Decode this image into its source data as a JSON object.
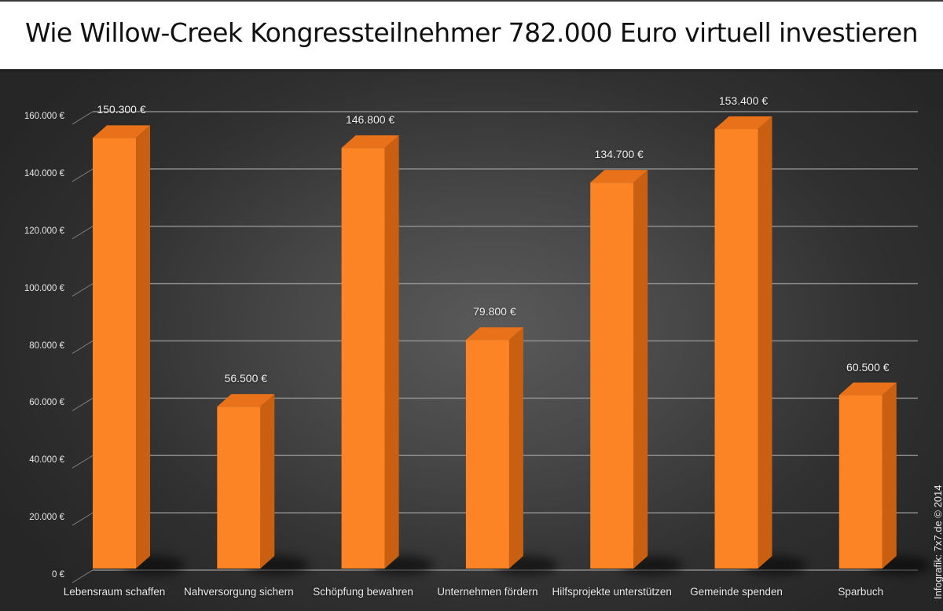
{
  "title": "Wie Willow-Creek Kongressteilnehmer 782.000 Euro virtuell investieren",
  "credit": "Infografik: 7x7.de © 2014",
  "colors": {
    "bar_front": "#fd8424",
    "bar_side": "#c95f10",
    "bar_top": "#e8711a",
    "grid": "#9a9a9a",
    "text": "#eaeaea"
  },
  "y_axis": {
    "ticks": [
      {
        "value": 0,
        "label": "0 €"
      },
      {
        "value": 20000,
        "label": "20.000 €"
      },
      {
        "value": 40000,
        "label": "40.000 €"
      },
      {
        "value": 60000,
        "label": "60.000 €"
      },
      {
        "value": 80000,
        "label": "80.000 €"
      },
      {
        "value": 100000,
        "label": "100.000 €"
      },
      {
        "value": 120000,
        "label": "120.000 €"
      },
      {
        "value": 140000,
        "label": "140.000 €"
      },
      {
        "value": 160000,
        "label": "160.000 €"
      }
    ]
  },
  "bars": [
    {
      "category": "Lebensraum schaffen",
      "value": 150300,
      "label": "150.300 €"
    },
    {
      "category": "Nahversorgung sichern",
      "value": 56500,
      "label": "56.500 €"
    },
    {
      "category": "Schöpfung bewahren",
      "value": 146800,
      "label": "146.800 €"
    },
    {
      "category": "Unternehmen fördern",
      "value": 79800,
      "label": "79.800 €"
    },
    {
      "category": "Hilfsprojekte unterstützen",
      "value": 134700,
      "label": "134.700 €"
    },
    {
      "category": "Gemeinde spenden",
      "value": 153400,
      "label": "153.400 €"
    },
    {
      "category": "Sparbuch",
      "value": 60500,
      "label": "60.500 €"
    }
  ],
  "chart_data": {
    "type": "bar",
    "title": "Wie Willow-Creek Kongressteilnehmer 782.000 Euro virtuell investieren",
    "categories": [
      "Lebensraum schaffen",
      "Nahversorgung sichern",
      "Schöpfung bewahren",
      "Unternehmen fördern",
      "Hilfsprojekte unterstützen",
      "Gemeinde spenden",
      "Sparbuch"
    ],
    "values": [
      150300,
      56500,
      146800,
      79800,
      134700,
      153400,
      60500
    ],
    "data_labels": [
      "150.300 €",
      "56.500 €",
      "146.800 €",
      "79.800 €",
      "134.700 €",
      "153.400 €",
      "60.500 €"
    ],
    "xlabel": "",
    "ylabel": "",
    "ylim": [
      0,
      160000
    ],
    "yticks": [
      0,
      20000,
      40000,
      60000,
      80000,
      100000,
      120000,
      140000,
      160000
    ],
    "ytick_labels": [
      "0 €",
      "20.000 €",
      "40.000 €",
      "60.000 €",
      "80.000 €",
      "100.000 €",
      "120.000 €",
      "140.000 €",
      "160.000 €"
    ],
    "grid": true,
    "legend": null,
    "style": "3d-bar",
    "annotations": [
      "Infografik: 7x7.de © 2014"
    ]
  }
}
